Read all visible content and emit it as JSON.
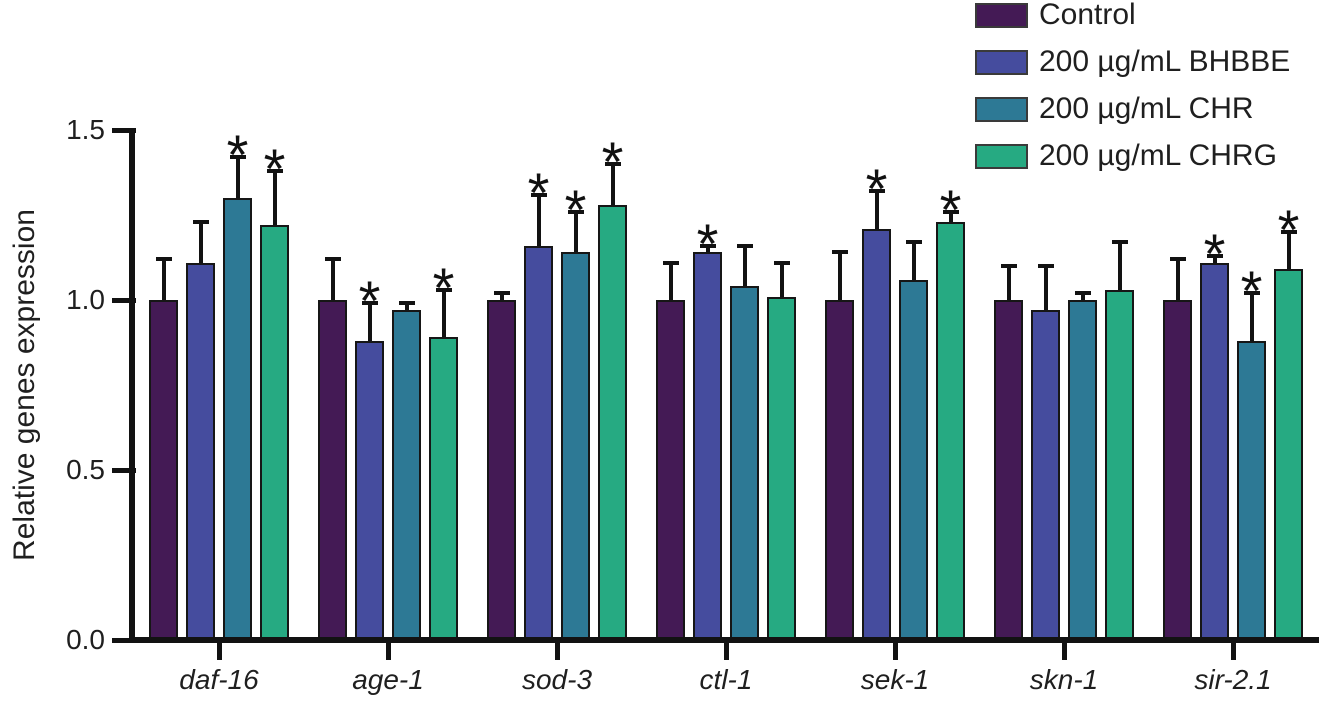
{
  "figure": {
    "background": "#ffffff"
  },
  "chart_data": {
    "type": "bar",
    "title": "",
    "xlabel": "",
    "ylabel": "Relative genes expression",
    "ylim": [
      0,
      1.5
    ],
    "grid": false,
    "legend_position": "top-right",
    "significance_symbol": "*",
    "yticks": [
      {
        "label": "0.0",
        "value": 0.0
      },
      {
        "label": "0.5",
        "value": 0.5
      },
      {
        "label": "1.0",
        "value": 1.0
      },
      {
        "label": "1.5",
        "value": 1.5
      }
    ],
    "categories": [
      "daf-16",
      "age-1",
      "sod-3",
      "ctl-1",
      "sek-1",
      "skn-1",
      "sir-2.1"
    ],
    "series": [
      {
        "name": "Control",
        "color": "#441a55",
        "values": [
          1.0,
          1.0,
          1.0,
          1.0,
          1.0,
          1.0,
          1.0
        ],
        "errors_plus": [
          0.12,
          0.12,
          0.02,
          0.11,
          0.14,
          0.1,
          0.12
        ],
        "significant": [
          false,
          false,
          false,
          false,
          false,
          false,
          false
        ]
      },
      {
        "name": "200 µg/mL BHBBE",
        "color": "#454c9e",
        "values": [
          1.11,
          0.88,
          1.16,
          1.14,
          1.21,
          0.97,
          1.11
        ],
        "errors_plus": [
          0.12,
          0.11,
          0.15,
          0.02,
          0.11,
          0.13,
          0.02
        ],
        "significant": [
          false,
          true,
          true,
          true,
          true,
          false,
          true
        ]
      },
      {
        "name": "200 µg/mL CHR",
        "color": "#2d7995",
        "values": [
          1.3,
          0.97,
          1.14,
          1.04,
          1.06,
          1.0,
          0.88
        ],
        "errors_plus": [
          0.12,
          0.02,
          0.12,
          0.12,
          0.11,
          0.02,
          0.14
        ],
        "significant": [
          true,
          false,
          true,
          false,
          false,
          false,
          true
        ]
      },
      {
        "name": "200 µg/mL CHRG",
        "color": "#26aa82",
        "values": [
          1.22,
          0.89,
          1.28,
          1.01,
          1.23,
          1.03,
          1.09
        ],
        "errors_plus": [
          0.16,
          0.14,
          0.12,
          0.1,
          0.03,
          0.14,
          0.11
        ],
        "significant": [
          true,
          true,
          true,
          false,
          true,
          false,
          true
        ]
      }
    ]
  }
}
